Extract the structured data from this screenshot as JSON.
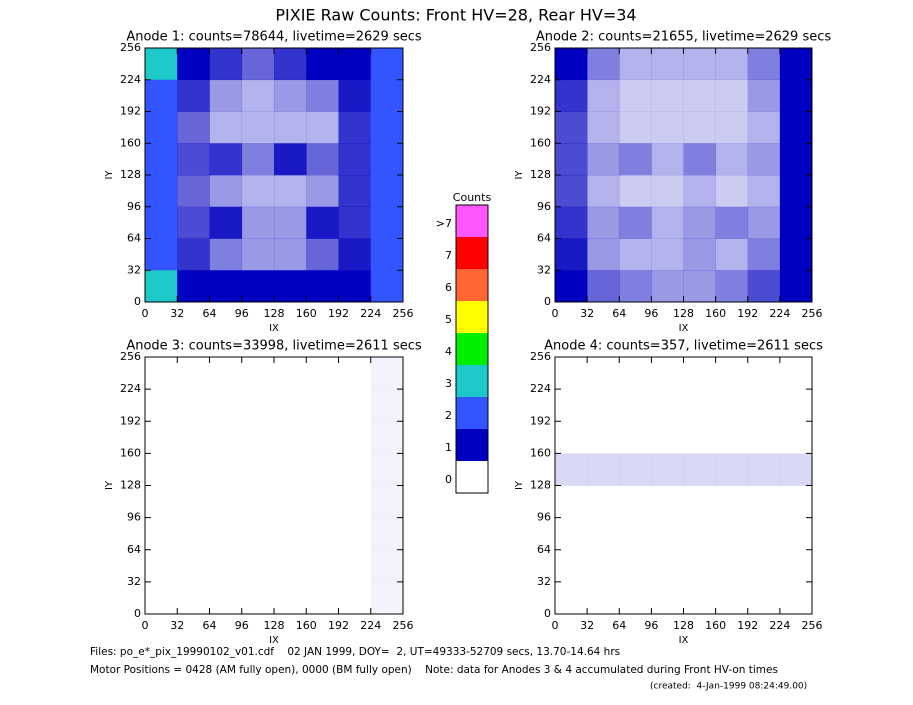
{
  "title": "PIXIE Raw Counts:  Front HV=28, Rear HV=34",
  "colorbar": {
    "title": "Counts",
    "ticks": [
      0,
      1,
      2,
      3,
      4,
      5,
      6,
      7,
      {
        "value": 8,
        "label": ">7"
      }
    ],
    "colors": [
      "#ffffff",
      "#0000c0",
      "#3355ff",
      "#1cc8c8",
      "#00ee00",
      "#ffff00",
      "#ff6633",
      "#ff0000",
      "#ff55ff"
    ]
  },
  "footer": [
    "Files: po_e*_pix_19990102_v01.cdf    02 JAN 1999, DOY=  2, UT=49333-52709 secs, 13.70-14.64 hrs",
    "Motor Positions = 0428 (AM fully open), 0000 (BM fully open)    Note: data for Anodes 3 & 4 accumulated during Front HV-on times",
    "(created:  4-Jan-1999 08:24:49.00)"
  ],
  "chart_data": [
    {
      "type": "heatmap",
      "title": "Anode 1: counts=78644, livetime=2629 secs",
      "xlabel": "IX",
      "ylabel": "IY",
      "xlim": [
        0,
        256
      ],
      "ylim": [
        0,
        256
      ],
      "xticks": [
        0,
        32,
        64,
        96,
        128,
        160,
        192,
        224,
        256
      ],
      "yticks": [
        0,
        32,
        64,
        96,
        128,
        160,
        192,
        224,
        256
      ],
      "z": [
        [
          3,
          1.2,
          0.8,
          0.6,
          0.8,
          1,
          1.2,
          2.5
        ],
        [
          2.5,
          0.8,
          0.4,
          0.3,
          0.4,
          0.5,
          0.9,
          2.5
        ],
        [
          2.5,
          0.6,
          0.3,
          0.3,
          0.3,
          0.3,
          0.8,
          2.5
        ],
        [
          2.5,
          0.7,
          0.8,
          0.5,
          0.9,
          0.6,
          0.8,
          2.5
        ],
        [
          2.5,
          0.6,
          0.4,
          0.3,
          0.3,
          0.4,
          0.8,
          2.5
        ],
        [
          2.5,
          0.7,
          0.9,
          0.4,
          0.4,
          0.9,
          0.8,
          2.5
        ],
        [
          2.5,
          0.8,
          0.5,
          0.4,
          0.4,
          0.6,
          0.9,
          2.5
        ],
        [
          3,
          1.5,
          1.2,
          1,
          1,
          1.2,
          1.5,
          2.5
        ]
      ]
    },
    {
      "type": "heatmap",
      "title": "Anode 2: counts=21655, livetime=2629 secs",
      "xlabel": "IX",
      "ylabel": "IY",
      "xlim": [
        0,
        256
      ],
      "ylim": [
        0,
        256
      ],
      "xticks": [
        0,
        32,
        64,
        96,
        128,
        160,
        192,
        224,
        256
      ],
      "yticks": [
        0,
        32,
        64,
        96,
        128,
        160,
        192,
        224,
        256
      ],
      "z": [
        [
          1,
          0.5,
          0.3,
          0.3,
          0.3,
          0.3,
          0.5,
          1.5
        ],
        [
          0.8,
          0.3,
          0.2,
          0.2,
          0.2,
          0.2,
          0.4,
          1.2
        ],
        [
          0.7,
          0.3,
          0.2,
          0.2,
          0.2,
          0.2,
          0.3,
          1
        ],
        [
          0.7,
          0.4,
          0.5,
          0.3,
          0.5,
          0.3,
          0.4,
          1
        ],
        [
          0.7,
          0.3,
          0.2,
          0.2,
          0.3,
          0.2,
          0.3,
          1
        ],
        [
          0.8,
          0.4,
          0.5,
          0.3,
          0.4,
          0.5,
          0.4,
          1
        ],
        [
          0.9,
          0.4,
          0.3,
          0.3,
          0.4,
          0.3,
          0.5,
          1.2
        ],
        [
          1.2,
          0.6,
          0.5,
          0.4,
          0.4,
          0.5,
          0.7,
          1.5
        ]
      ]
    },
    {
      "type": "heatmap",
      "title": "Anode 3: counts=33998, livetime=2611 secs",
      "xlabel": "IX",
      "ylabel": "IY",
      "xlim": [
        0,
        256
      ],
      "ylim": [
        0,
        256
      ],
      "xticks": [
        0,
        32,
        64,
        96,
        128,
        160,
        192,
        224,
        256
      ],
      "yticks": [
        0,
        32,
        64,
        96,
        128,
        160,
        192,
        224,
        256
      ],
      "z": [
        [
          0,
          0,
          0,
          0,
          0,
          0,
          0,
          0.05
        ],
        [
          0,
          0,
          0,
          0,
          0,
          0,
          0,
          0.05
        ],
        [
          0,
          0,
          0,
          0,
          0,
          0,
          0,
          0.05
        ],
        [
          0,
          0,
          0,
          0,
          0,
          0,
          0,
          0.05
        ],
        [
          0,
          0,
          0,
          0,
          0,
          0,
          0,
          0.05
        ],
        [
          0,
          0,
          0,
          0,
          0,
          0,
          0,
          0.05
        ],
        [
          0,
          0,
          0,
          0,
          0,
          0,
          0,
          0.05
        ],
        [
          0,
          0,
          0,
          0,
          0,
          0,
          0,
          0.05
        ]
      ]
    },
    {
      "type": "heatmap",
      "title": "Anode 4: counts=357, livetime=2611 secs",
      "xlabel": "IX",
      "ylabel": "IY",
      "xlim": [
        0,
        256
      ],
      "ylim": [
        0,
        256
      ],
      "xticks": [
        0,
        32,
        64,
        96,
        128,
        160,
        192,
        224,
        256
      ],
      "yticks": [
        0,
        32,
        64,
        96,
        128,
        160,
        192,
        224,
        256
      ],
      "z": [
        [
          0,
          0,
          0,
          0,
          0,
          0,
          0,
          0
        ],
        [
          0,
          0,
          0,
          0,
          0,
          0,
          0,
          0
        ],
        [
          0,
          0,
          0,
          0,
          0,
          0,
          0,
          0
        ],
        [
          0.15,
          0.15,
          0.15,
          0.15,
          0.15,
          0.15,
          0.15,
          0.15
        ],
        [
          0,
          0,
          0,
          0,
          0,
          0,
          0,
          0
        ],
        [
          0,
          0,
          0,
          0,
          0,
          0,
          0,
          0
        ],
        [
          0,
          0,
          0,
          0,
          0,
          0,
          0,
          0
        ],
        [
          0,
          0,
          0,
          0,
          0,
          0,
          0,
          0
        ]
      ]
    }
  ]
}
